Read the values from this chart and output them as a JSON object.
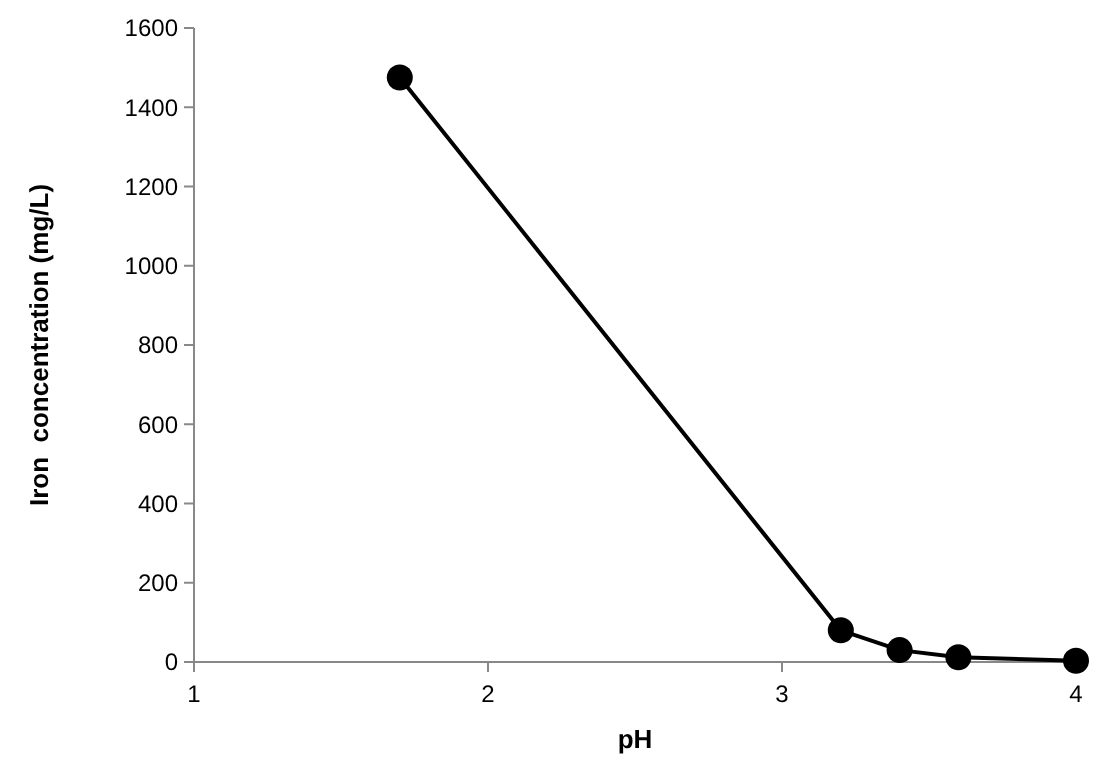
{
  "chart_data": {
    "type": "line",
    "xlabel": "pH",
    "ylabel": "Iron  concentration (mg/L)",
    "xlim": [
      1,
      4
    ],
    "xticks": [
      1,
      2,
      3,
      4
    ],
    "ylim": [
      0,
      1600
    ],
    "yticks": [
      0,
      200,
      400,
      600,
      800,
      1000,
      1200,
      1400,
      1600
    ],
    "grid": false,
    "marker": "circle",
    "line_style": "solid",
    "series": [
      {
        "color": "#000000",
        "x": [
          1.7,
          3.2,
          3.4,
          3.6,
          4.0
        ],
        "values": [
          1475,
          80,
          30,
          12,
          3
        ]
      }
    ]
  }
}
